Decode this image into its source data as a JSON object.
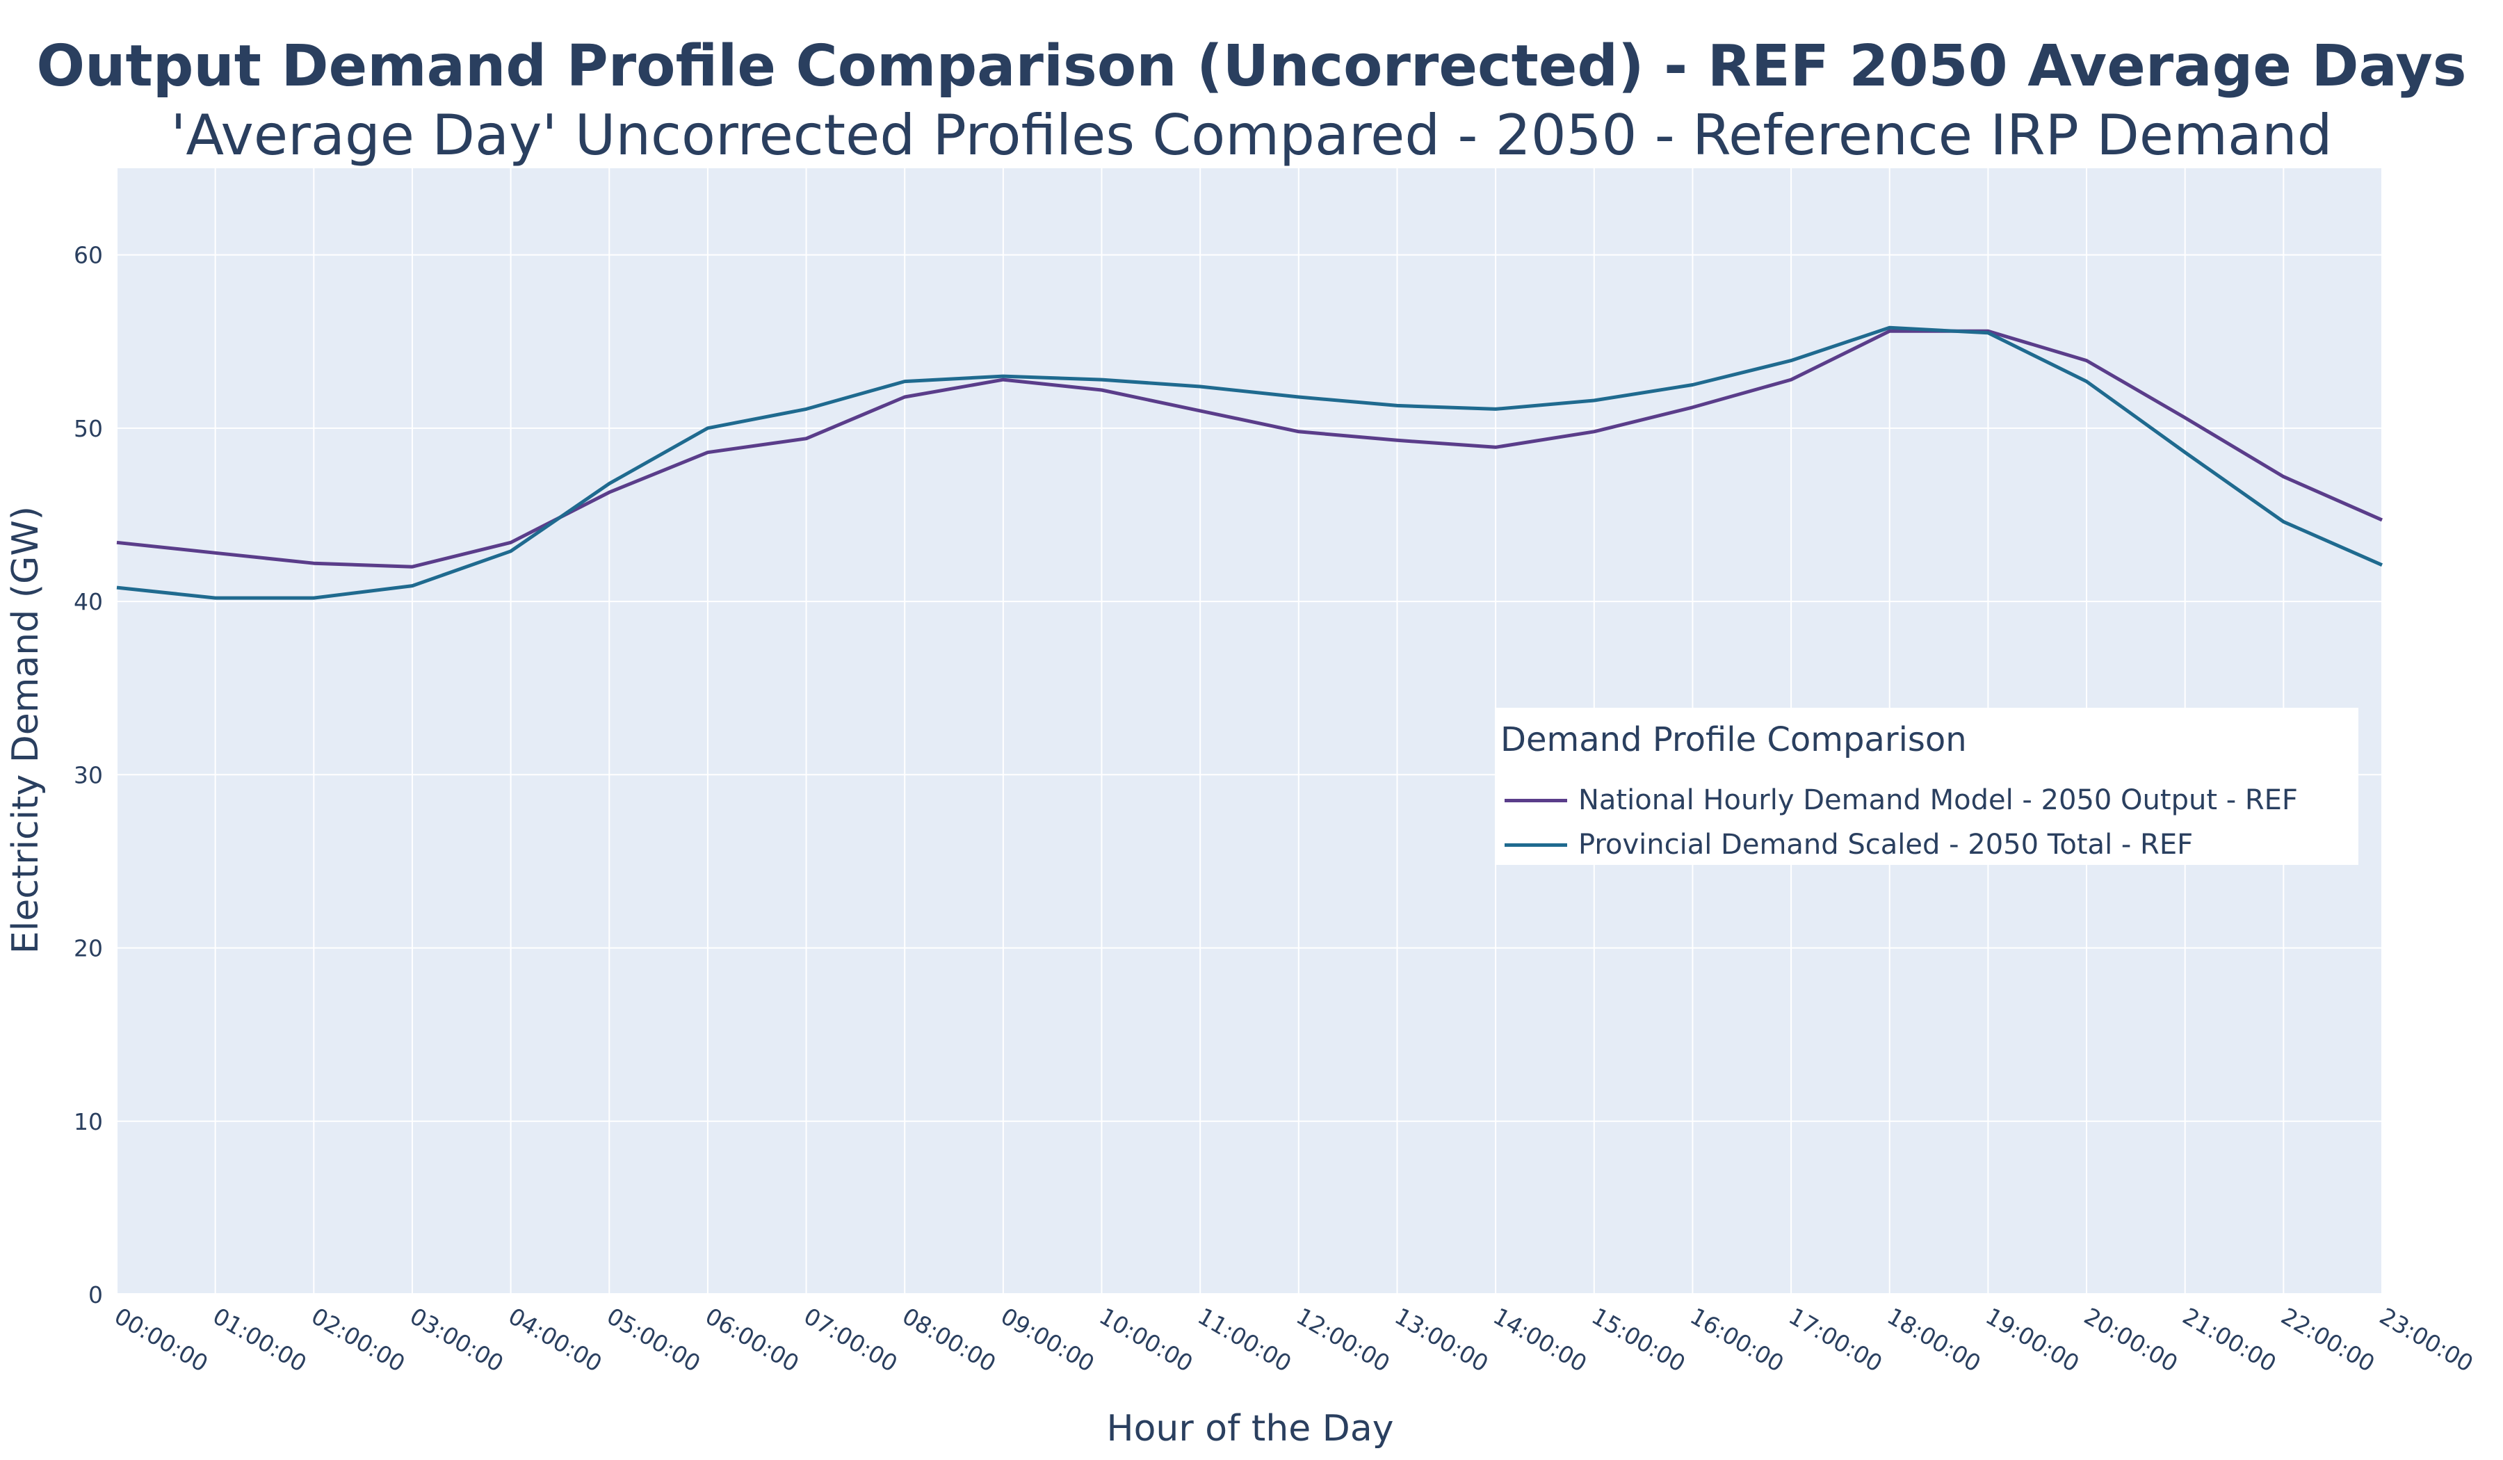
{
  "chart_data": {
    "type": "line",
    "title": "Output Demand Profile Comparison (Uncorrected) - REF 2050 Average Days",
    "subtitle": "'Average Day' Uncorrected Profiles Compared - 2050 - Reference IRP Demand",
    "xlabel": "Hour of the Day",
    "ylabel": "Electricity Demand (GW)",
    "ylim": [
      0,
      65
    ],
    "yticks": [
      0,
      10,
      20,
      30,
      40,
      50,
      60
    ],
    "categories": [
      "00:00:00",
      "01:00:00",
      "02:00:00",
      "03:00:00",
      "04:00:00",
      "05:00:00",
      "06:00:00",
      "07:00:00",
      "08:00:00",
      "09:00:00",
      "10:00:00",
      "11:00:00",
      "12:00:00",
      "13:00:00",
      "14:00:00",
      "15:00:00",
      "16:00:00",
      "17:00:00",
      "18:00:00",
      "19:00:00",
      "20:00:00",
      "21:00:00",
      "22:00:00",
      "23:00:00"
    ],
    "legend": {
      "title": "Demand Profile Comparison",
      "position": "right-middle"
    },
    "series": [
      {
        "name": "National Hourly Demand Model - 2050 Output - REF",
        "color": "#5a3d8a",
        "values": [
          43.4,
          42.8,
          42.2,
          42.0,
          43.4,
          46.3,
          48.6,
          49.4,
          51.8,
          52.8,
          52.2,
          51.0,
          49.8,
          49.3,
          48.9,
          49.8,
          51.2,
          52.8,
          55.6,
          55.6,
          53.9,
          50.6,
          47.2,
          44.7
        ]
      },
      {
        "name": "Provincial Demand Scaled - 2050 Total - REF",
        "color": "#1f6a8f",
        "values": [
          40.8,
          40.2,
          40.2,
          40.9,
          42.9,
          46.8,
          50.0,
          51.1,
          52.7,
          53.0,
          52.8,
          52.4,
          51.8,
          51.3,
          51.1,
          51.6,
          52.5,
          53.9,
          55.8,
          55.5,
          52.7,
          48.6,
          44.6,
          42.1
        ]
      }
    ]
  }
}
